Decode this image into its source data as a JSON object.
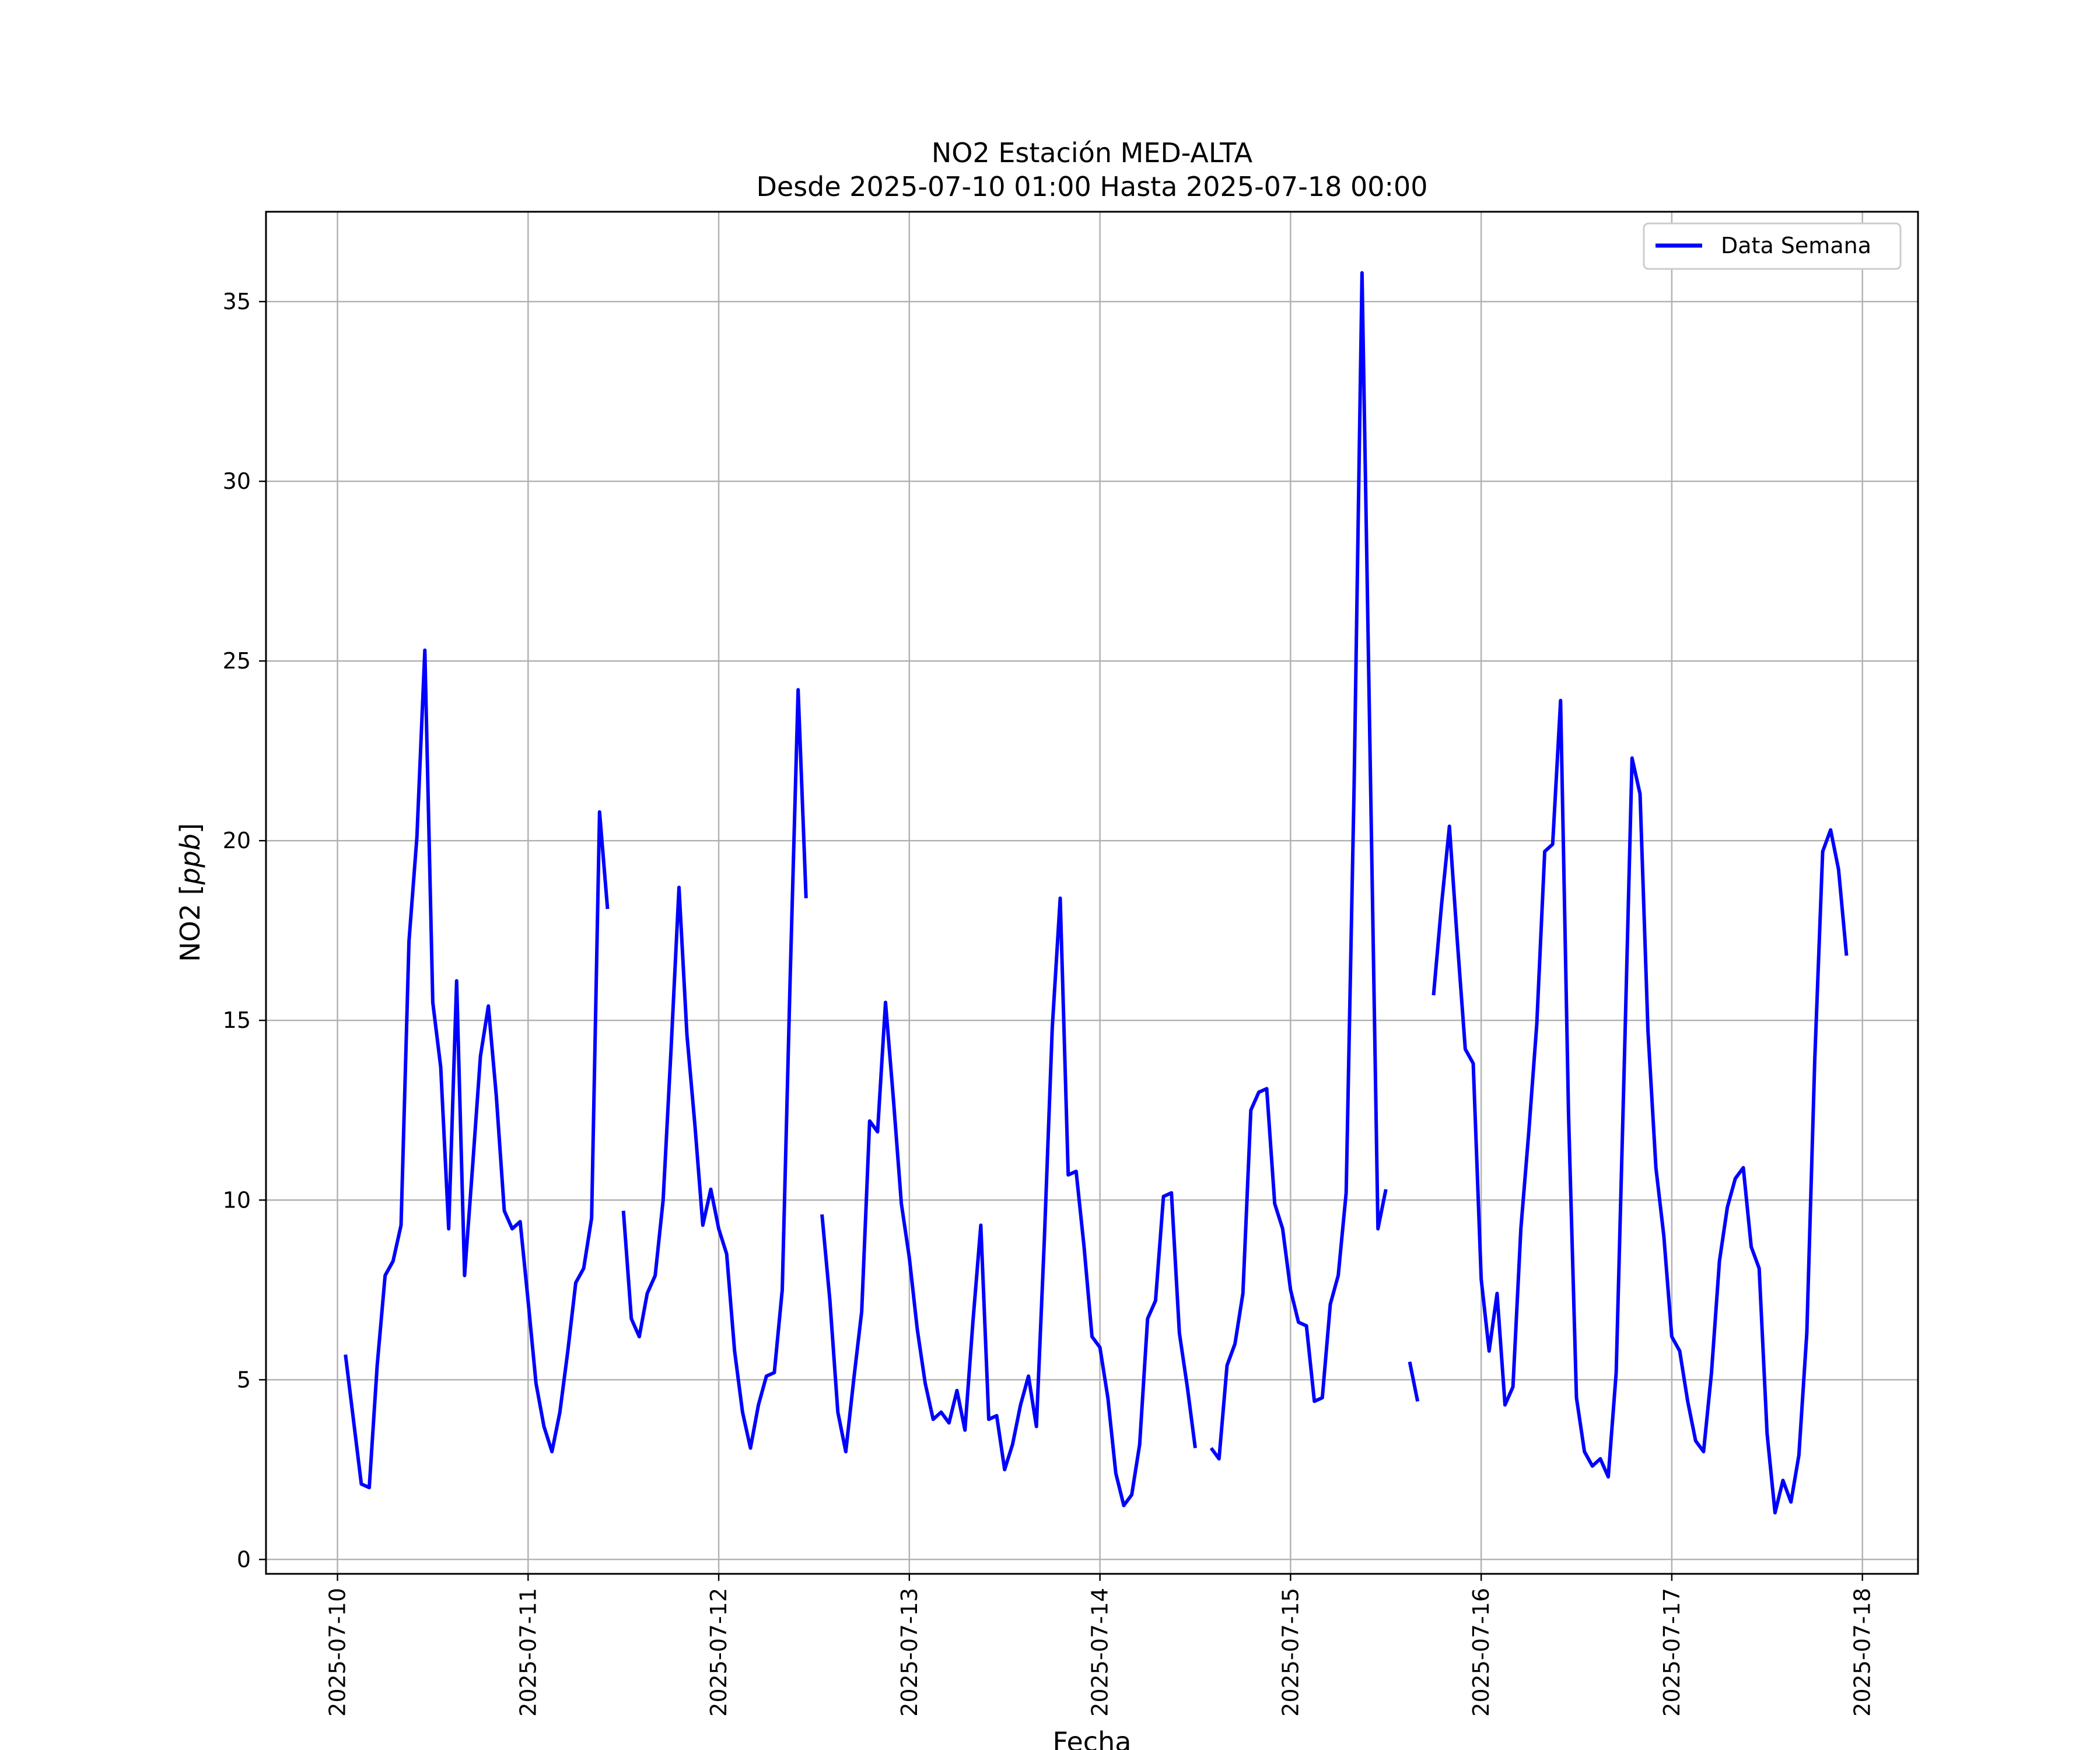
{
  "chart_data": {
    "type": "line",
    "title": "NO2 Estación MED-ALTA",
    "subtitle": "Desde 2025-07-10 01:00 Hasta 2025-07-18 00:00",
    "xlabel": "Fecha",
    "ylabel": "NO2 [ppb]",
    "ylim": [
      -0.4,
      37.5
    ],
    "xlim": [
      "2025-07-09 15:00",
      "2025-07-18 07:00"
    ],
    "grid": true,
    "legend_position": "top-right",
    "line_color": "#0000ff",
    "x_ticks": [
      "2025-07-10",
      "2025-07-11",
      "2025-07-12",
      "2025-07-13",
      "2025-07-14",
      "2025-07-15",
      "2025-07-16",
      "2025-07-17",
      "2025-07-18"
    ],
    "y_ticks": [
      0,
      5,
      10,
      15,
      20,
      25,
      30,
      35
    ],
    "series": [
      {
        "name": "Data Semana",
        "color": "#0000ff",
        "points": [
          [
            "2025-07-10 01:00",
            5.7
          ],
          [
            "2025-07-10 02:00",
            3.9
          ],
          [
            "2025-07-10 03:00",
            2.1
          ],
          [
            "2025-07-10 04:00",
            2.0
          ],
          [
            "2025-07-10 05:00",
            5.4
          ],
          [
            "2025-07-10 06:00",
            7.9
          ],
          [
            "2025-07-10 07:00",
            8.3
          ],
          [
            "2025-07-10 08:00",
            9.3
          ],
          [
            "2025-07-10 09:00",
            17.2
          ],
          [
            "2025-07-10 10:00",
            20.1
          ],
          [
            "2025-07-10 11:00",
            25.3
          ],
          [
            "2025-07-10 12:00",
            15.5
          ],
          [
            "2025-07-10 13:00",
            13.7
          ],
          [
            "2025-07-10 14:00",
            9.2
          ],
          [
            "2025-07-10 15:00",
            16.1
          ],
          [
            "2025-07-10 16:00",
            7.9
          ],
          [
            "2025-07-10 17:00",
            10.9
          ],
          [
            "2025-07-10 18:00",
            14.0
          ],
          [
            "2025-07-10 19:00",
            15.4
          ],
          [
            "2025-07-10 20:00",
            12.9
          ],
          [
            "2025-07-10 21:00",
            9.7
          ],
          [
            "2025-07-10 22:00",
            9.2
          ],
          [
            "2025-07-10 23:00",
            9.4
          ],
          [
            "2025-07-11 00:00",
            7.2
          ],
          [
            "2025-07-11 01:00",
            4.9
          ],
          [
            "2025-07-11 02:00",
            3.7
          ],
          [
            "2025-07-11 03:00",
            3.0
          ],
          [
            "2025-07-11 04:00",
            4.1
          ],
          [
            "2025-07-11 05:00",
            5.8
          ],
          [
            "2025-07-11 06:00",
            7.7
          ],
          [
            "2025-07-11 07:00",
            8.1
          ],
          [
            "2025-07-11 08:00",
            9.5
          ],
          [
            "2025-07-11 09:00",
            20.8
          ],
          [
            "2025-07-11 10:00",
            18.1
          ],
          null,
          [
            "2025-07-11 12:00",
            9.7
          ],
          [
            "2025-07-11 13:00",
            6.7
          ],
          [
            "2025-07-11 14:00",
            6.2
          ],
          [
            "2025-07-11 15:00",
            7.4
          ],
          [
            "2025-07-11 16:00",
            7.9
          ],
          [
            "2025-07-11 17:00",
            10.0
          ],
          [
            "2025-07-11 18:00",
            14.2
          ],
          [
            "2025-07-11 19:00",
            18.7
          ],
          [
            "2025-07-11 20:00",
            14.6
          ],
          [
            "2025-07-11 21:00",
            12.1
          ],
          [
            "2025-07-11 22:00",
            9.3
          ],
          [
            "2025-07-11 23:00",
            10.3
          ],
          [
            "2025-07-12 00:00",
            9.2
          ],
          [
            "2025-07-12 01:00",
            8.5
          ],
          [
            "2025-07-12 02:00",
            5.8
          ],
          [
            "2025-07-12 03:00",
            4.1
          ],
          [
            "2025-07-12 04:00",
            3.1
          ],
          [
            "2025-07-12 05:00",
            4.3
          ],
          [
            "2025-07-12 06:00",
            5.1
          ],
          [
            "2025-07-12 07:00",
            5.2
          ],
          [
            "2025-07-12 08:00",
            7.5
          ],
          [
            "2025-07-12 09:00",
            16.2
          ],
          [
            "2025-07-12 10:00",
            24.2
          ],
          [
            "2025-07-12 11:00",
            18.4
          ],
          null,
          [
            "2025-07-12 13:00",
            9.6
          ],
          [
            "2025-07-12 14:00",
            7.2
          ],
          [
            "2025-07-12 15:00",
            4.1
          ],
          [
            "2025-07-12 16:00",
            3.0
          ],
          [
            "2025-07-12 17:00",
            5.0
          ],
          [
            "2025-07-12 18:00",
            6.9
          ],
          [
            "2025-07-12 19:00",
            12.2
          ],
          [
            "2025-07-12 20:00",
            11.9
          ],
          [
            "2025-07-12 21:00",
            15.5
          ],
          [
            "2025-07-12 22:00",
            12.8
          ],
          [
            "2025-07-12 23:00",
            9.9
          ],
          [
            "2025-07-13 00:00",
            8.4
          ],
          [
            "2025-07-13 01:00",
            6.4
          ],
          [
            "2025-07-13 02:00",
            4.9
          ],
          [
            "2025-07-13 03:00",
            3.9
          ],
          [
            "2025-07-13 04:00",
            4.1
          ],
          [
            "2025-07-13 05:00",
            3.8
          ],
          [
            "2025-07-13 06:00",
            4.7
          ],
          [
            "2025-07-13 07:00",
            3.6
          ],
          [
            "2025-07-13 08:00",
            6.6
          ],
          [
            "2025-07-13 09:00",
            9.3
          ],
          [
            "2025-07-13 10:00",
            3.9
          ],
          [
            "2025-07-13 11:00",
            4.0
          ],
          [
            "2025-07-13 12:00",
            2.5
          ],
          [
            "2025-07-13 13:00",
            3.2
          ],
          [
            "2025-07-13 14:00",
            4.3
          ],
          [
            "2025-07-13 15:00",
            5.1
          ],
          [
            "2025-07-13 16:00",
            3.7
          ],
          [
            "2025-07-13 17:00",
            8.9
          ],
          [
            "2025-07-13 18:00",
            14.8
          ],
          [
            "2025-07-13 19:00",
            18.4
          ],
          [
            "2025-07-13 20:00",
            10.7
          ],
          [
            "2025-07-13 21:00",
            10.8
          ],
          [
            "2025-07-13 22:00",
            8.7
          ],
          [
            "2025-07-13 23:00",
            6.2
          ],
          [
            "2025-07-14 00:00",
            5.9
          ],
          [
            "2025-07-14 01:00",
            4.5
          ],
          [
            "2025-07-14 02:00",
            2.4
          ],
          [
            "2025-07-14 03:00",
            1.5
          ],
          [
            "2025-07-14 04:00",
            1.8
          ],
          [
            "2025-07-14 05:00",
            3.2
          ],
          [
            "2025-07-14 06:00",
            6.7
          ],
          [
            "2025-07-14 07:00",
            7.2
          ],
          [
            "2025-07-14 08:00",
            10.1
          ],
          [
            "2025-07-14 09:00",
            10.2
          ],
          [
            "2025-07-14 10:00",
            6.3
          ],
          [
            "2025-07-14 11:00",
            4.8
          ],
          [
            "2025-07-14 12:00",
            3.1
          ],
          null,
          [
            "2025-07-14 14:00",
            3.1
          ],
          [
            "2025-07-14 15:00",
            2.8
          ],
          [
            "2025-07-14 16:00",
            5.4
          ],
          [
            "2025-07-14 17:00",
            6.0
          ],
          [
            "2025-07-14 18:00",
            7.4
          ],
          [
            "2025-07-14 19:00",
            12.5
          ],
          [
            "2025-07-14 20:00",
            13.0
          ],
          [
            "2025-07-14 21:00",
            13.1
          ],
          [
            "2025-07-14 22:00",
            9.9
          ],
          [
            "2025-07-14 23:00",
            9.2
          ],
          [
            "2025-07-15 00:00",
            7.5
          ],
          [
            "2025-07-15 01:00",
            6.6
          ],
          [
            "2025-07-15 02:00",
            6.5
          ],
          [
            "2025-07-15 03:00",
            4.4
          ],
          [
            "2025-07-15 04:00",
            4.5
          ],
          [
            "2025-07-15 05:00",
            7.1
          ],
          [
            "2025-07-15 06:00",
            7.9
          ],
          [
            "2025-07-15 07:00",
            10.2
          ],
          [
            "2025-07-15 08:00",
            21.5
          ],
          [
            "2025-07-15 09:00",
            35.8
          ],
          [
            "2025-07-15 10:00",
            22.6
          ],
          [
            "2025-07-15 11:00",
            9.2
          ],
          [
            "2025-07-15 12:00",
            10.3
          ],
          null,
          [
            "2025-07-15 15:00",
            5.5
          ],
          [
            "2025-07-15 16:00",
            4.4
          ],
          null,
          [
            "2025-07-15 18:00",
            15.7
          ],
          [
            "2025-07-15 19:00",
            18.2
          ],
          [
            "2025-07-15 20:00",
            20.4
          ],
          [
            "2025-07-15 21:00",
            17.2
          ],
          [
            "2025-07-15 22:00",
            14.2
          ],
          [
            "2025-07-15 23:00",
            13.8
          ],
          [
            "2025-07-16 00:00",
            7.8
          ],
          [
            "2025-07-16 01:00",
            5.8
          ],
          [
            "2025-07-16 02:00",
            7.4
          ],
          [
            "2025-07-16 03:00",
            4.3
          ],
          [
            "2025-07-16 04:00",
            4.8
          ],
          [
            "2025-07-16 05:00",
            9.2
          ],
          [
            "2025-07-16 06:00",
            11.9
          ],
          [
            "2025-07-16 07:00",
            14.9
          ],
          [
            "2025-07-16 08:00",
            19.7
          ],
          [
            "2025-07-16 09:00",
            19.9
          ],
          [
            "2025-07-16 10:00",
            23.9
          ],
          [
            "2025-07-16 11:00",
            12.4
          ],
          [
            "2025-07-16 12:00",
            4.5
          ],
          [
            "2025-07-16 13:00",
            3.0
          ],
          [
            "2025-07-16 14:00",
            2.6
          ],
          [
            "2025-07-16 15:00",
            2.8
          ],
          [
            "2025-07-16 16:00",
            2.3
          ],
          [
            "2025-07-16 17:00",
            5.2
          ],
          [
            "2025-07-16 18:00",
            13.6
          ],
          [
            "2025-07-16 19:00",
            22.3
          ],
          [
            "2025-07-16 20:00",
            21.3
          ],
          [
            "2025-07-16 21:00",
            14.7
          ],
          [
            "2025-07-16 22:00",
            10.9
          ],
          [
            "2025-07-16 23:00",
            9.0
          ],
          [
            "2025-07-17 00:00",
            6.2
          ],
          [
            "2025-07-17 01:00",
            5.8
          ],
          [
            "2025-07-17 02:00",
            4.4
          ],
          [
            "2025-07-17 03:00",
            3.3
          ],
          [
            "2025-07-17 04:00",
            3.0
          ],
          [
            "2025-07-17 05:00",
            5.2
          ],
          [
            "2025-07-17 06:00",
            8.3
          ],
          [
            "2025-07-17 07:00",
            9.8
          ],
          [
            "2025-07-17 08:00",
            10.6
          ],
          [
            "2025-07-17 09:00",
            10.9
          ],
          [
            "2025-07-17 10:00",
            8.7
          ],
          [
            "2025-07-17 11:00",
            8.1
          ],
          [
            "2025-07-17 12:00",
            3.5
          ],
          [
            "2025-07-17 13:00",
            1.3
          ],
          [
            "2025-07-17 14:00",
            2.2
          ],
          [
            "2025-07-17 15:00",
            1.6
          ],
          [
            "2025-07-17 16:00",
            2.9
          ],
          [
            "2025-07-17 17:00",
            6.3
          ],
          [
            "2025-07-17 18:00",
            13.9
          ],
          [
            "2025-07-17 19:00",
            19.7
          ],
          [
            "2025-07-17 20:00",
            20.3
          ],
          [
            "2025-07-17 21:00",
            19.2
          ],
          [
            "2025-07-17 22:00",
            16.8
          ]
        ]
      }
    ]
  }
}
